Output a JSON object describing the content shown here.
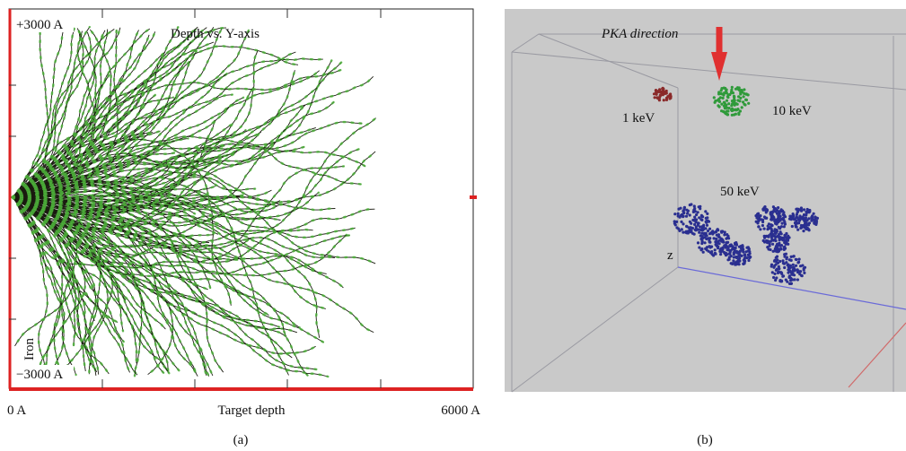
{
  "panel_a": {
    "y_top_label": "+3000 A",
    "title": "Depth vs. Y-axis",
    "material": "Iron",
    "y_bottom_label": "−3000 A",
    "x_left_label": "0 A",
    "x_axis_label": "Target depth",
    "x_right_label": "6000 A",
    "caption": "(a)"
  },
  "panel_b": {
    "arrow_label": "PKA direction",
    "labels": [
      "1 keV",
      "10 keV",
      "50 keV"
    ],
    "axis_label": "z",
    "caption": "(b)"
  }
}
